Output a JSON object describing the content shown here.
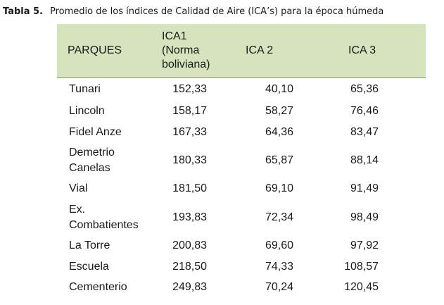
{
  "caption": {
    "label": "Tabla 5.",
    "text": "Promedio de los índices de Calidad de Aire (ICA’s) para la época húmeda"
  },
  "table": {
    "headers": {
      "parques": "PARQUES",
      "ica1": [
        "ICA1",
        "(Norma",
        "boliviana)"
      ],
      "ica2": "ICA 2",
      "ica3": "ICA 3"
    },
    "rows": [
      {
        "name": [
          "Tunari"
        ],
        "ica1": "152,33",
        "ica2": "40,10",
        "ica3": "65,36"
      },
      {
        "name": [
          "Lincoln"
        ],
        "ica1": "158,17",
        "ica2": "58,27",
        "ica3": "76,46"
      },
      {
        "name": [
          "Fidel Anze"
        ],
        "ica1": "167,33",
        "ica2": "64,36",
        "ica3": "83,47"
      },
      {
        "name": [
          "Demetrio",
          "Canelas"
        ],
        "ica1": "180,33",
        "ica2": "65,87",
        "ica3": "88,14"
      },
      {
        "name": [
          "Vial"
        ],
        "ica1": "181,50",
        "ica2": "69,10",
        "ica3": "91,49"
      },
      {
        "name": [
          "Ex.",
          "Combatientes"
        ],
        "ica1": "193,83",
        "ica2": "72,34",
        "ica3": "98,49"
      },
      {
        "name": [
          "La Torre"
        ],
        "ica1": "200,83",
        "ica2": "69,60",
        "ica3": "97,92"
      },
      {
        "name": [
          "Escuela"
        ],
        "ica1": "218,50",
        "ica2": "74,33",
        "ica3": "108,57"
      },
      {
        "name": [
          "Cementerio"
        ],
        "ica1": "249,83",
        "ica2": "70,24",
        "ica3": "120,45"
      }
    ]
  }
}
